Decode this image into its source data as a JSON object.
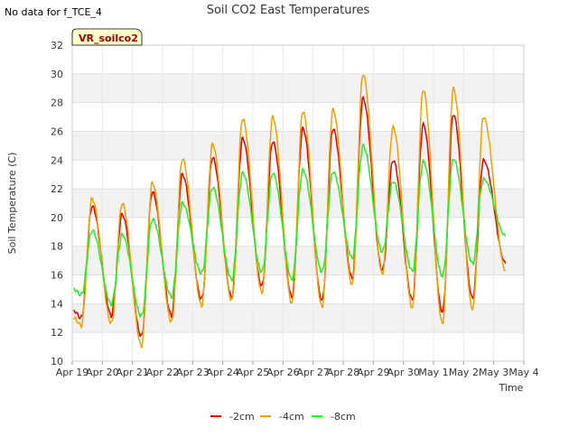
{
  "corner_note": "No data for f_TCE_4",
  "site_badge": "VR_soilco2",
  "chart_data": {
    "type": "line",
    "title": "Soil CO2 East Temperatures",
    "xlabel": "Time",
    "ylabel": "Soil Temperature (C)",
    "ylim": [
      10,
      32
    ],
    "xlim": [
      0,
      15
    ],
    "yticks": [
      10,
      12,
      14,
      16,
      18,
      20,
      22,
      24,
      26,
      28,
      30,
      32
    ],
    "xtick_labels": [
      "Apr 19",
      "Apr 20",
      "Apr 21",
      "Apr 22",
      "Apr 23",
      "Apr 24",
      "Apr 25",
      "Apr 26",
      "Apr 27",
      "Apr 28",
      "Apr 29",
      "Apr 30",
      "May 1",
      "May 2",
      "May 3",
      "May 4"
    ],
    "grid": true,
    "legend_position": "bottom",
    "series": [
      {
        "name": "-2cm",
        "color": "#dd0000",
        "daily_min": [
          13.0,
          13.2,
          11.7,
          13.2,
          14.3,
          14.5,
          15.2,
          14.5,
          14.2,
          15.8,
          16.3,
          14.3,
          13.4,
          14.4
        ],
        "daily_max": [
          20.8,
          20.2,
          21.8,
          23.0,
          24.2,
          25.5,
          25.3,
          26.2,
          26.2,
          28.3,
          24.0,
          26.5,
          27.2,
          24.0
        ],
        "end_day": 14.4,
        "end_value": 16.8
      },
      {
        "name": "-4cm",
        "color": "#f0a000",
        "daily_min": [
          12.5,
          12.6,
          11.1,
          12.7,
          13.9,
          14.2,
          14.8,
          14.0,
          13.8,
          15.3,
          16.1,
          13.7,
          12.6,
          13.6
        ],
        "daily_max": [
          21.3,
          21.0,
          22.4,
          24.1,
          25.1,
          26.9,
          27.0,
          27.4,
          27.5,
          30.0,
          26.3,
          28.9,
          29.0,
          27.0
        ],
        "end_day": 14.4,
        "end_value": 16.3
      },
      {
        "name": "-8cm",
        "color": "#22ee22",
        "daily_min": [
          14.6,
          14.0,
          13.1,
          14.5,
          16.1,
          15.7,
          16.2,
          15.7,
          16.2,
          17.2,
          17.6,
          16.3,
          15.9,
          16.8
        ],
        "daily_max": [
          19.1,
          18.8,
          19.9,
          21.0,
          22.1,
          23.1,
          23.1,
          23.3,
          23.2,
          25.0,
          22.5,
          23.9,
          24.1,
          22.7
        ],
        "end_day": 14.4,
        "end_value": 18.7
      }
    ]
  }
}
